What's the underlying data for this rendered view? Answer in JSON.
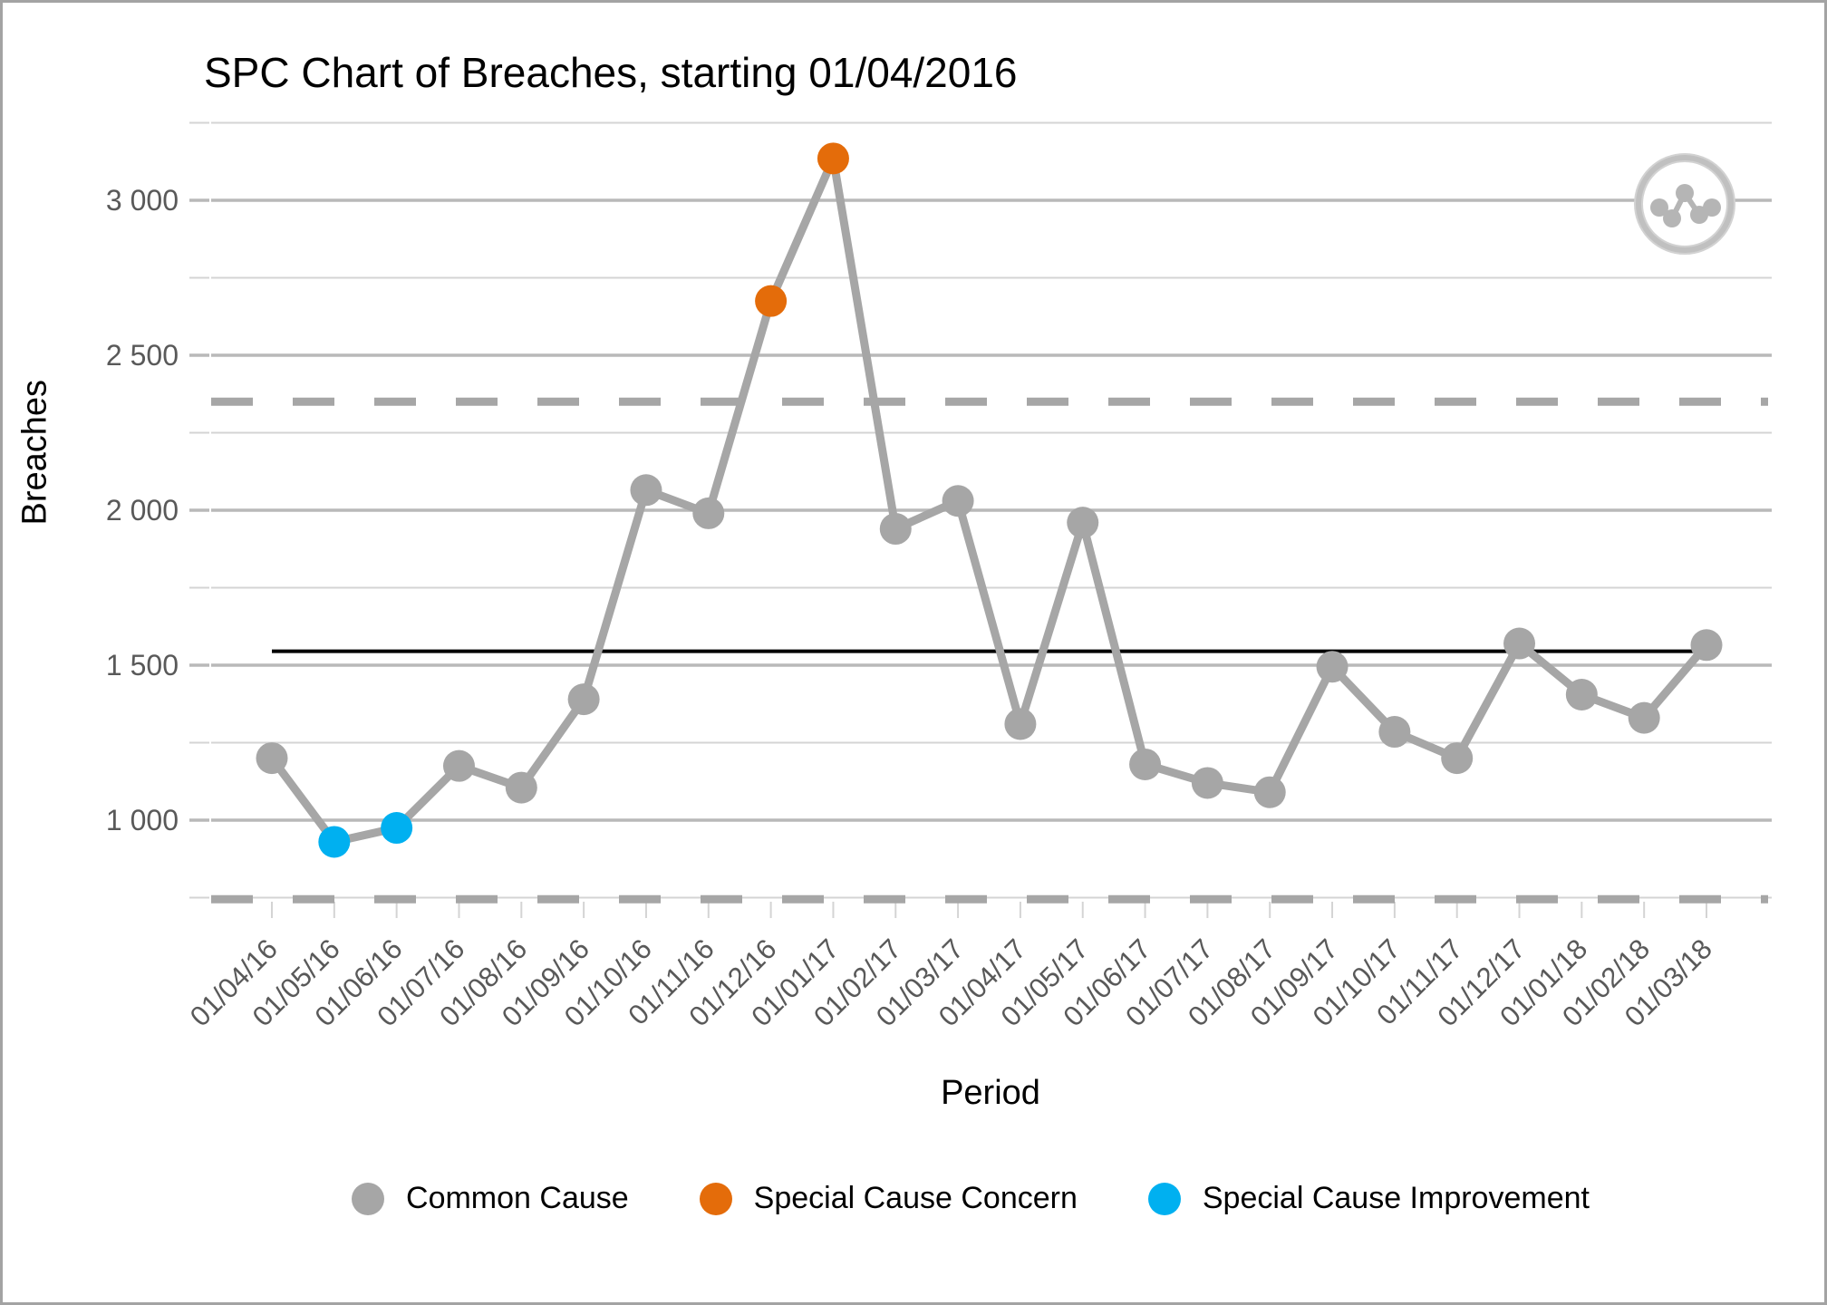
{
  "title": "SPC Chart of Breaches, starting 01/04/2016",
  "chart_data": {
    "type": "line",
    "title": "SPC Chart of Breaches, starting 01/04/2016",
    "xlabel": "Period",
    "ylabel": "Breaches",
    "ylim": [
      750,
      3250
    ],
    "grid_step": 250,
    "grid_on": true,
    "y_major_ticks": [
      1000,
      1500,
      2000,
      2500,
      3000
    ],
    "y_major_tick_labels": [
      "1 000",
      "1 500",
      "2 000",
      "2 500",
      "3 000"
    ],
    "categories": [
      "01/04/16",
      "01/05/16",
      "01/06/16",
      "01/07/16",
      "01/08/16",
      "01/09/16",
      "01/10/16",
      "01/11/16",
      "01/12/16",
      "01/01/17",
      "01/02/17",
      "01/03/17",
      "01/04/17",
      "01/05/17",
      "01/06/17",
      "01/07/17",
      "01/08/17",
      "01/09/17",
      "01/10/17",
      "01/11/17",
      "01/12/17",
      "01/01/18",
      "01/02/18",
      "01/03/18"
    ],
    "series": [
      {
        "name": "Breaches",
        "values": [
          1200,
          930,
          975,
          1175,
          1105,
          1390,
          2065,
          1990,
          2675,
          3135,
          1940,
          2030,
          1310,
          1960,
          1180,
          1120,
          1090,
          1495,
          1285,
          1200,
          1570,
          1405,
          1330,
          1565
        ],
        "point_types": [
          "common",
          "improvement",
          "improvement",
          "common",
          "common",
          "common",
          "common",
          "common",
          "concern",
          "concern",
          "common",
          "common",
          "common",
          "common",
          "common",
          "common",
          "common",
          "common",
          "common",
          "common",
          "common",
          "common",
          "common",
          "common"
        ]
      }
    ],
    "control_lines": {
      "mean": 1545,
      "upper_control_limit": 2350,
      "lower_control_limit": 745
    },
    "legend": [
      {
        "label": "Common Cause",
        "color": "#a6a6a6"
      },
      {
        "label": "Special Cause Concern",
        "color": "#e46c0a"
      },
      {
        "label": "Special Cause Improvement",
        "color": "#00b0f0"
      }
    ],
    "legend_position": "bottom",
    "colors": {
      "series_line": "#a6a6a6",
      "common_point": "#a6a6a6",
      "concern_point": "#e46c0a",
      "improvement_point": "#00b0f0",
      "mean_line": "#000000",
      "limit_line": "#a6a6a6",
      "grid_major": "#b9b9b9",
      "grid_minor": "#d4d4d4",
      "tick_text": "#595959"
    }
  },
  "icon": {
    "name": "spc-line-chart-logo"
  }
}
